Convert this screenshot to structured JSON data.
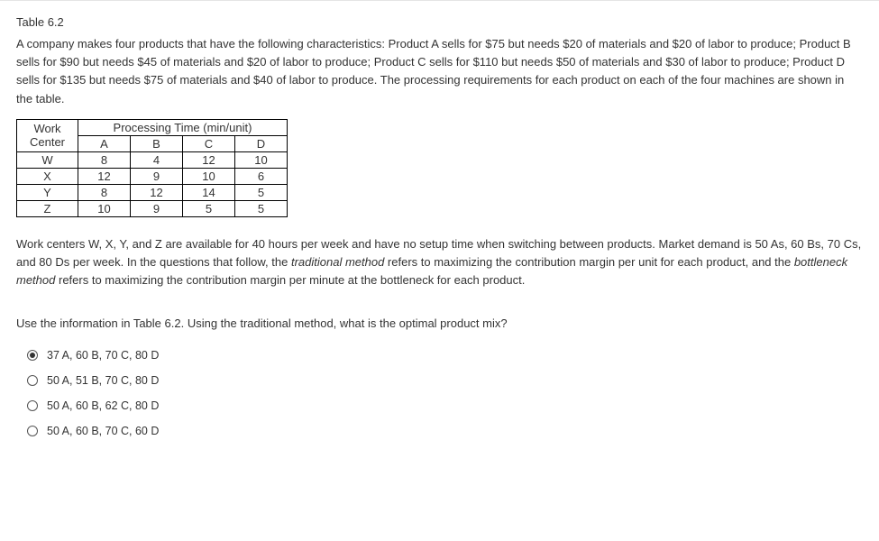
{
  "table_label": "Table 6.2",
  "intro_text": "A company makes four products that have the following characteristics: Product A sells for $75 but needs $20 of materials and $20 of labor to produce; Product B sells for $90 but needs $45 of materials and $20 of labor to produce; Product C sells for $110 but needs $50 of materials and $30 of labor to produce; Product D sells for $135 but needs $75 of materials and $40 of labor to produce. The processing requirements for each product on each of the four machines are shown in the table.",
  "table": {
    "super_header": "Processing Time (min/unit)",
    "row_label_header": "Work Center",
    "columns": [
      "A",
      "B",
      "C",
      "D"
    ],
    "rows": [
      {
        "label": "W",
        "cells": [
          "8",
          "4",
          "12",
          "10"
        ]
      },
      {
        "label": "X",
        "cells": [
          "12",
          "9",
          "10",
          "6"
        ]
      },
      {
        "label": "Y",
        "cells": [
          "8",
          "12",
          "14",
          "5"
        ]
      },
      {
        "label": "Z",
        "cells": [
          "10",
          "9",
          "5",
          "5"
        ]
      }
    ]
  },
  "context_pre": "Work centers W, X, Y, and Z are available for 40 hours per week and have no setup time when switching between products. Market demand is 50 As, 60 Bs, 70 Cs, and 80 Ds per week. In the questions that follow, the ",
  "italic1": "traditional method",
  "context_mid": " refers to maximizing the contribution margin per unit for each product, and the ",
  "italic2": "bottleneck method",
  "context_post": " refers to maximizing the contribution margin per minute at the bottleneck for each product.",
  "question_text": "Use the information in Table 6.2. Using the traditional method, what is the optimal product mix?",
  "answers": [
    {
      "label": "37 A, 60 B, 70 C, 80 D",
      "selected": true
    },
    {
      "label": "50 A, 51 B, 70 C, 80 D",
      "selected": false
    },
    {
      "label": "50 A, 60 B, 62 C, 80 D",
      "selected": false
    },
    {
      "label": "50 A, 60 B, 70 C, 60 D",
      "selected": false
    }
  ]
}
